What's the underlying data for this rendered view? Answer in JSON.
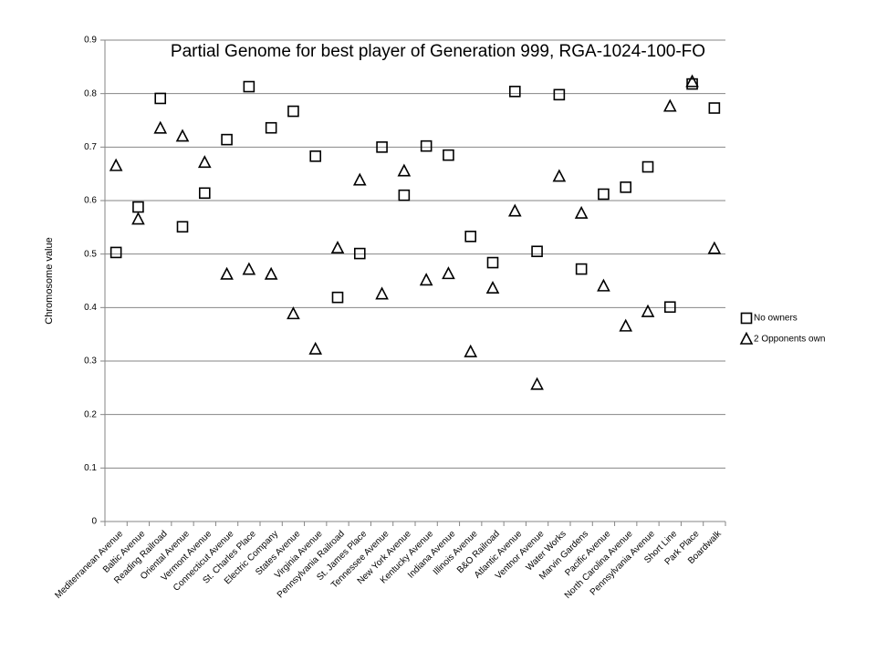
{
  "chart_data": {
    "type": "scatter",
    "title": "Partial Genome for best player of Generation 999, RGA-1024-100-FO",
    "y_label": "Chromosome value",
    "categories": [
      "Mediterranean Avenue",
      "Baltic Avenue",
      "Reading Railroad",
      "Oriental Avenue",
      "Vermont Avenue",
      "Connecticut Avenue",
      "St. Charles Place",
      "Electric Company",
      "States Avenue",
      "Virginia Avenue",
      "Pennsylvania Railroad",
      "St. James Place",
      "Tennessee Avenue",
      "New York Avenue",
      "Kentucky Avenue",
      "Indiana Avenue",
      "Illinois Avenue",
      "B&O Railroad",
      "Atlantic Avenue",
      "Ventnor Avenue",
      "Water Works",
      "Marvin Gardens",
      "Pacific Avenue",
      "North Carolina Avenue",
      "Pennsylvania Avenue",
      "Short Line",
      "Park Place",
      "Boardwalk"
    ],
    "series": [
      {
        "name": "No owners",
        "color": "#000000",
        "marker": "square",
        "values": [
          0.503,
          0.588,
          0.791,
          0.551,
          0.614,
          0.714,
          0.813,
          0.736,
          0.767,
          0.683,
          0.419,
          0.501,
          0.7,
          0.61,
          0.702,
          0.685,
          0.533,
          0.484,
          0.804,
          0.505,
          0.798,
          0.472,
          0.612,
          0.625,
          0.663,
          0.401,
          0.818,
          0.773
        ]
      },
      {
        "name": "2 Opponents own",
        "color": "#000000",
        "marker": "triangle",
        "values": [
          0.665,
          0.565,
          0.735,
          0.72,
          0.671,
          0.462,
          0.471,
          0.462,
          0.388,
          0.322,
          0.511,
          0.638,
          0.425,
          0.655,
          0.451,
          0.463,
          0.317,
          0.436,
          0.58,
          0.256,
          0.645,
          0.576,
          0.44,
          0.365,
          0.392,
          0.776,
          0.822,
          0.51
        ]
      }
    ],
    "ylim": [
      0,
      0.9
    ],
    "yticks": [
      0,
      0.1,
      0.2,
      0.3,
      0.4,
      0.5,
      0.6,
      0.7,
      0.8,
      0.9
    ],
    "grid": true,
    "legend": "right"
  }
}
